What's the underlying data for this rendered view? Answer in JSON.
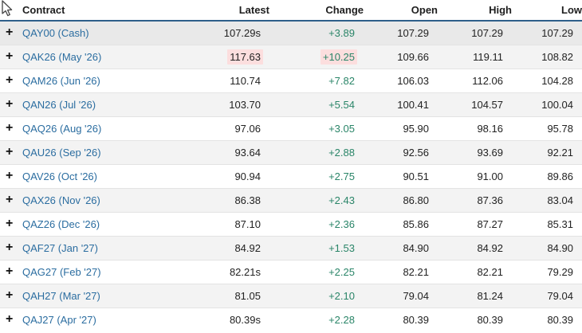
{
  "cursor": {
    "icon": "arrow-pointer"
  },
  "colors": {
    "link_blue": "#2b6da0",
    "change_green": "#2a8568",
    "flash_pink": "#fcdede",
    "header_border_blue": "#2e5f8a",
    "stripe_gray": "#f3f3f3",
    "cash_row_gray": "#e9e9e9",
    "text_dark": "#222222",
    "row_border": "#e3e3e3"
  },
  "table": {
    "expand_icon": "+",
    "columns": [
      {
        "label": "Contract",
        "align": "left"
      },
      {
        "label": "Latest",
        "align": "right"
      },
      {
        "label": "Change",
        "align": "right"
      },
      {
        "label": "Open",
        "align": "right"
      },
      {
        "label": "High",
        "align": "right"
      },
      {
        "label": "Low",
        "align": "right"
      }
    ],
    "rows": [
      {
        "contract": "QAY00 (Cash)",
        "latest": "107.29s",
        "change": "+3.89",
        "open": "107.29",
        "high": "107.29",
        "low": "107.29",
        "shade": "cash",
        "flash_latest": false,
        "flash_change": false
      },
      {
        "contract": "QAK26 (May '26)",
        "latest": "117.63",
        "change": "+10.25",
        "open": "109.66",
        "high": "119.11",
        "low": "108.82",
        "shade": "even",
        "flash_latest": true,
        "flash_change": true
      },
      {
        "contract": "QAM26 (Jun '26)",
        "latest": "110.74",
        "change": "+7.82",
        "open": "106.03",
        "high": "112.06",
        "low": "104.28",
        "shade": "odd",
        "flash_latest": false,
        "flash_change": false
      },
      {
        "contract": "QAN26 (Jul '26)",
        "latest": "103.70",
        "change": "+5.54",
        "open": "100.41",
        "high": "104.57",
        "low": "100.04",
        "shade": "even",
        "flash_latest": false,
        "flash_change": false
      },
      {
        "contract": "QAQ26 (Aug '26)",
        "latest": "97.06",
        "change": "+3.05",
        "open": "95.90",
        "high": "98.16",
        "low": "95.78",
        "shade": "odd",
        "flash_latest": false,
        "flash_change": false
      },
      {
        "contract": "QAU26 (Sep '26)",
        "latest": "93.64",
        "change": "+2.88",
        "open": "92.56",
        "high": "93.69",
        "low": "92.21",
        "shade": "even",
        "flash_latest": false,
        "flash_change": false
      },
      {
        "contract": "QAV26 (Oct '26)",
        "latest": "90.94",
        "change": "+2.75",
        "open": "90.51",
        "high": "91.00",
        "low": "89.86",
        "shade": "odd",
        "flash_latest": false,
        "flash_change": false
      },
      {
        "contract": "QAX26 (Nov '26)",
        "latest": "86.38",
        "change": "+2.43",
        "open": "86.80",
        "high": "87.36",
        "low": "83.04",
        "shade": "even",
        "flash_latest": false,
        "flash_change": false
      },
      {
        "contract": "QAZ26 (Dec '26)",
        "latest": "87.10",
        "change": "+2.36",
        "open": "85.86",
        "high": "87.27",
        "low": "85.31",
        "shade": "odd",
        "flash_latest": false,
        "flash_change": false
      },
      {
        "contract": "QAF27 (Jan '27)",
        "latest": "84.92",
        "change": "+1.53",
        "open": "84.90",
        "high": "84.92",
        "low": "84.90",
        "shade": "even",
        "flash_latest": false,
        "flash_change": false
      },
      {
        "contract": "QAG27 (Feb '27)",
        "latest": "82.21s",
        "change": "+2.25",
        "open": "82.21",
        "high": "82.21",
        "low": "79.29",
        "shade": "odd",
        "flash_latest": false,
        "flash_change": false
      },
      {
        "contract": "QAH27 (Mar '27)",
        "latest": "81.05",
        "change": "+2.10",
        "open": "79.04",
        "high": "81.24",
        "low": "79.04",
        "shade": "even",
        "flash_latest": false,
        "flash_change": false
      },
      {
        "contract": "QAJ27 (Apr '27)",
        "latest": "80.39s",
        "change": "+2.28",
        "open": "80.39",
        "high": "80.39",
        "low": "80.39",
        "shade": "odd",
        "flash_latest": false,
        "flash_change": false
      }
    ]
  }
}
